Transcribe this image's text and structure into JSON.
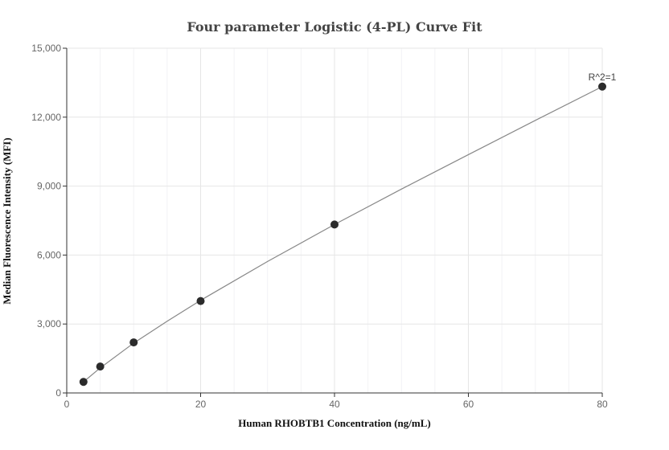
{
  "chart_data": {
    "type": "scatter",
    "title": "Four parameter Logistic (4-PL) Curve Fit",
    "xlabel": "Human RHOBTB1 Concentration (ng/mL)",
    "ylabel": "Median Fluorescence Intensity (MFI)",
    "xlim": [
      0,
      80
    ],
    "ylim": [
      0,
      15000
    ],
    "x_ticks": [
      0,
      20,
      40,
      60,
      80
    ],
    "x_tick_labels": [
      "0",
      "20",
      "40",
      "60",
      "80"
    ],
    "y_ticks": [
      0,
      3000,
      6000,
      9000,
      12000,
      15000
    ],
    "y_tick_labels": [
      "0",
      "3,000",
      "6,000",
      "9,000",
      "12,000",
      "15,000"
    ],
    "grid": true,
    "annotation": "R^2=1",
    "series": [
      {
        "points": [
          {
            "x": 2.5,
            "y": 480
          },
          {
            "x": 5,
            "y": 1150
          },
          {
            "x": 10,
            "y": 2200
          },
          {
            "x": 20,
            "y": 4000
          },
          {
            "x": 40,
            "y": 7330
          },
          {
            "x": 80,
            "y": 13330
          }
        ],
        "fit_curve": [
          {
            "x": 2.5,
            "y": 480
          },
          {
            "x": 5,
            "y": 1090
          },
          {
            "x": 10,
            "y": 2170
          },
          {
            "x": 15,
            "y": 3120
          },
          {
            "x": 20,
            "y": 4030
          },
          {
            "x": 30,
            "y": 5720
          },
          {
            "x": 40,
            "y": 7330
          },
          {
            "x": 50,
            "y": 8870
          },
          {
            "x": 60,
            "y": 10370
          },
          {
            "x": 70,
            "y": 11860
          },
          {
            "x": 80,
            "y": 13330
          }
        ]
      }
    ]
  }
}
